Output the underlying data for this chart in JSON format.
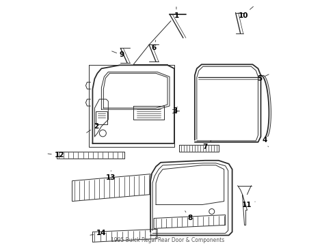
{
  "background_color": "#ffffff",
  "line_color": "#2a2a2a",
  "label_color": "#000000",
  "title": "1995 Buick Regal Rear Door & Components",
  "title_fontsize": 5.5,
  "label_fontsize": 7.5,
  "lw_main": 1.3,
  "lw_thin": 0.7,
  "lw_med": 1.0
}
